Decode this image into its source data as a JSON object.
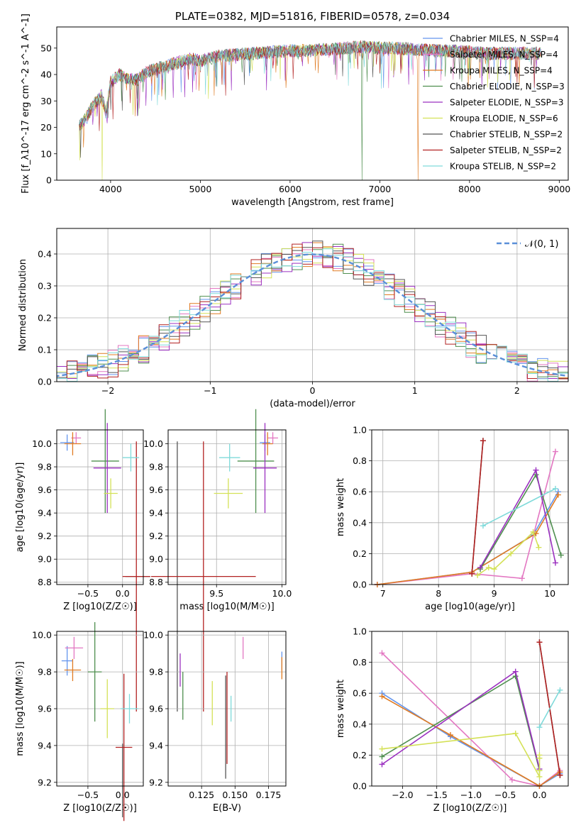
{
  "chart_data": [
    {
      "id": "spectrum",
      "type": "line",
      "title": "PLATE=0382, MJD=51816, FIBERID=0578, z=0.034",
      "xlabel": "wavelength [Angstrom, rest frame]",
      "ylabel": "Flux [f_λ10^-17 erg cm^-2 s^-1 A^-1]",
      "xlim": [
        3400,
        9100
      ],
      "ylim": [
        0,
        58
      ],
      "xticks": [
        4000,
        5000,
        6000,
        7000,
        8000,
        9000
      ],
      "yticks": [
        0,
        10,
        20,
        30,
        40,
        50
      ],
      "legend_position": "top-right",
      "grid": false,
      "series": [
        {
          "name": "Chabrier MILES, N_SSP=4",
          "color": "#6495ed"
        },
        {
          "name": "Salpeter MILES, N_SSP=4",
          "color": "#e377c2"
        },
        {
          "name": "Kroupa MILES, N_SSP=4",
          "color": "#e07b22"
        },
        {
          "name": "Chabrier ELODIE, N_SSP=3",
          "color": "#4f8f4f"
        },
        {
          "name": "Salpeter ELODIE, N_SSP=3",
          "color": "#9b30c0"
        },
        {
          "name": "Kroupa ELODIE, N_SSP=6",
          "color": "#d4e157"
        },
        {
          "name": "Chabrier STELIB, N_SSP=2",
          "color": "#555555"
        },
        {
          "name": "Salpeter STELIB, N_SSP=2",
          "color": "#b22222"
        },
        {
          "name": "Kroupa STELIB, N_SSP=2",
          "color": "#7fdada"
        }
      ],
      "continuum": {
        "x": [
          3650,
          3700,
          3800,
          3900,
          3950,
          4000,
          4100,
          4200,
          4300,
          4400,
          4500,
          4700,
          4900,
          5000,
          5200,
          5400,
          5600,
          5800,
          6000,
          6200,
          6400,
          6600,
          6800,
          7000,
          7200,
          7400,
          7600,
          7800,
          8000,
          8200,
          8400,
          8600,
          8800
        ],
        "y": [
          21,
          22,
          28,
          32,
          25,
          37,
          40,
          38,
          38,
          41,
          42,
          44,
          46,
          45,
          47,
          47.5,
          48,
          48.5,
          49,
          49,
          49.5,
          50,
          50.5,
          50,
          50,
          49.5,
          49,
          49,
          48.5,
          48,
          48,
          48,
          48
        ]
      }
    },
    {
      "id": "residuals",
      "type": "histogram",
      "xlabel": "(data-model)/error",
      "ylabel": "Normed distribution",
      "xlim": [
        -2.5,
        2.5
      ],
      "ylim": [
        0,
        0.48
      ],
      "xticks": [
        -2,
        -1,
        0,
        1,
        2
      ],
      "yticks": [
        0.0,
        0.1,
        0.2,
        0.3,
        0.4
      ],
      "grid": true,
      "legend_position": "top-right",
      "reference_curve": {
        "label": "𝒩(0, 1)",
        "color": "#5a8fd8",
        "mean": 0,
        "sigma": 1
      },
      "bin_width": 0.1
    },
    {
      "id": "age-vs-Z",
      "type": "scatter",
      "xlabel": "Z [log10(Z/Z☉)]",
      "ylabel": "age  [log10(age/yr)]",
      "xlim": [
        -0.95,
        0.3
      ],
      "ylim": [
        8.78,
        10.12
      ],
      "xticks": [
        -0.5,
        0.0
      ],
      "yticks": [
        8.8,
        9.0,
        9.2,
        9.4,
        9.6,
        9.8,
        10.0
      ],
      "grid": true,
      "points": [
        {
          "x": -0.8,
          "y": 10.01,
          "ex": 0.1,
          "ey": 0.07,
          "color": "#6495ed"
        },
        {
          "x": -0.67,
          "y": 10.05,
          "ex": 0.07,
          "ey": 0.05,
          "color": "#e377c2"
        },
        {
          "x": -0.72,
          "y": 10.0,
          "ex": 0.12,
          "ey": 0.1,
          "color": "#e07b22"
        },
        {
          "x": -0.25,
          "y": 9.85,
          "ex": 0.2,
          "ey": 0.45,
          "color": "#4f8f4f"
        },
        {
          "x": -0.22,
          "y": 9.79,
          "ex": 0.2,
          "ey": 0.39,
          "color": "#9b30c0"
        },
        {
          "x": -0.17,
          "y": 9.57,
          "ex": 0.1,
          "ey": 0.13,
          "color": "#d4e157"
        },
        {
          "x": 0.22,
          "y": 8.85,
          "ex": 0.18,
          "ey": 0.0,
          "color": "#555555"
        },
        {
          "x": 0.2,
          "y": 8.85,
          "ex": 0.2,
          "ey": 1.17,
          "color": "#b22222"
        },
        {
          "x": 0.12,
          "y": 9.88,
          "ex": 0.12,
          "ey": 0.12,
          "color": "#7fdada"
        }
      ]
    },
    {
      "id": "age-vs-mass",
      "type": "scatter",
      "xlabel": "mass [log10(M/M☉)]",
      "ylabel": "",
      "xlim": [
        9.13,
        10.03
      ],
      "ylim": [
        8.78,
        10.12
      ],
      "xticks": [
        9.5,
        10.0
      ],
      "yticks": [
        8.8,
        9.0,
        9.2,
        9.4,
        9.6,
        9.8,
        10.0
      ],
      "grid": true,
      "points": [
        {
          "x": 9.87,
          "y": 10.01,
          "ex": 0.04,
          "ey": 0.07,
          "color": "#6495ed"
        },
        {
          "x": 9.93,
          "y": 10.05,
          "ex": 0.04,
          "ey": 0.05,
          "color": "#e377c2"
        },
        {
          "x": 9.89,
          "y": 10.0,
          "ex": 0.04,
          "ey": 0.1,
          "color": "#e07b22"
        },
        {
          "x": 9.8,
          "y": 9.85,
          "ex": 0.14,
          "ey": 0.45,
          "color": "#4f8f4f"
        },
        {
          "x": 9.87,
          "y": 9.79,
          "ex": 0.09,
          "ey": 0.39,
          "color": "#9b30c0"
        },
        {
          "x": 9.59,
          "y": 9.57,
          "ex": 0.11,
          "ey": 0.13,
          "color": "#d4e157"
        },
        {
          "x": 9.2,
          "y": 8.85,
          "ex": 0.0,
          "ey": 1.17,
          "color": "#555555"
        },
        {
          "x": 9.4,
          "y": 8.85,
          "ex": 0.4,
          "ey": 1.17,
          "color": "#b22222"
        },
        {
          "x": 9.6,
          "y": 9.88,
          "ex": 0.08,
          "ey": 0.12,
          "color": "#7fdada"
        }
      ]
    },
    {
      "id": "weight-vs-age",
      "type": "line",
      "xlabel": "age  [log10(age/yr)]",
      "ylabel": "mass weight",
      "xlim": [
        6.8,
        10.33
      ],
      "ylim": [
        0,
        1.0
      ],
      "xticks": [
        7,
        8,
        9,
        10
      ],
      "yticks": [
        0.0,
        0.2,
        0.4,
        0.6,
        0.8,
        1.0
      ],
      "grid": true,
      "series": [
        {
          "color": "#6495ed",
          "x": [
            6.9,
            8.6,
            9.7,
            10.15
          ],
          "y": [
            0.0,
            0.08,
            0.32,
            0.6
          ]
        },
        {
          "color": "#e377c2",
          "x": [
            6.9,
            8.6,
            9.5,
            10.1
          ],
          "y": [
            0.0,
            0.07,
            0.04,
            0.86
          ]
        },
        {
          "color": "#e07b22",
          "x": [
            6.9,
            8.6,
            9.75,
            10.15
          ],
          "y": [
            0.0,
            0.08,
            0.33,
            0.58
          ]
        },
        {
          "color": "#4f8f4f",
          "x": [
            8.75,
            9.75,
            10.2
          ],
          "y": [
            0.1,
            0.71,
            0.19
          ]
        },
        {
          "color": "#9b30c0",
          "x": [
            8.75,
            9.75,
            10.1
          ],
          "y": [
            0.11,
            0.74,
            0.14
          ]
        },
        {
          "color": "#d4e157",
          "x": [
            8.7,
            8.9,
            9.0,
            9.3,
            9.7,
            9.8
          ],
          "y": [
            0.06,
            0.11,
            0.1,
            0.2,
            0.34,
            0.24
          ]
        },
        {
          "color": "#555555",
          "x": [
            8.6,
            8.8
          ],
          "y": [
            0.07,
            0.93
          ]
        },
        {
          "color": "#b22222",
          "x": [
            8.6,
            8.8
          ],
          "y": [
            0.07,
            0.93
          ]
        },
        {
          "color": "#7fdada",
          "x": [
            8.8,
            10.1
          ],
          "y": [
            0.38,
            0.62
          ]
        }
      ]
    },
    {
      "id": "mass-vs-Z",
      "type": "scatter",
      "xlabel": "Z [log10(Z/Z☉)]",
      "ylabel": "mass [log10(M/M☉)]",
      "xlim": [
        -0.95,
        0.3
      ],
      "ylim": [
        9.18,
        10.02
      ],
      "xticks": [
        -0.5,
        0.0
      ],
      "yticks": [
        9.2,
        9.4,
        9.6,
        9.8,
        10.0
      ],
      "grid": true,
      "points": [
        {
          "x": -0.8,
          "y": 9.86,
          "ex": 0.08,
          "ey": 0.08,
          "color": "#6495ed"
        },
        {
          "x": -0.7,
          "y": 9.93,
          "ex": 0.13,
          "ey": 0.06,
          "color": "#e377c2"
        },
        {
          "x": -0.72,
          "y": 9.81,
          "ex": 0.12,
          "ey": 0.06,
          "color": "#e07b22"
        },
        {
          "x": -0.4,
          "y": 9.8,
          "ex": 0.1,
          "ey": 0.27,
          "color": "#4f8f4f"
        },
        {
          "x": -0.32,
          "y": 9.89,
          "ex": 0.0,
          "ey": 0.0,
          "color": "#9b30c0"
        },
        {
          "x": -0.22,
          "y": 9.6,
          "ex": 0.1,
          "ey": 0.16,
          "color": "#d4e157"
        },
        {
          "x": 0.0,
          "y": 9.21,
          "ex": 0.0,
          "ey": 0.2,
          "color": "#555555"
        },
        {
          "x": 0.02,
          "y": 9.39,
          "ex": 0.12,
          "ey": 0.4,
          "color": "#b22222"
        },
        {
          "x": 0.1,
          "y": 9.6,
          "ex": 0.13,
          "ey": 0.08,
          "color": "#7fdada"
        }
      ]
    },
    {
      "id": "mass-vs-EBV",
      "type": "scatter",
      "xlabel": "E(B-V)",
      "ylabel": "",
      "xlim": [
        0.1,
        0.188
      ],
      "ylim": [
        9.18,
        10.02
      ],
      "xticks": [
        0.125,
        0.15,
        0.175
      ],
      "yticks": [
        9.2,
        9.4,
        9.6,
        9.8,
        10.0
      ],
      "grid": true,
      "points": [
        {
          "x": 0.185,
          "y": 9.86,
          "ex": 0.0,
          "ey": 0.05,
          "color": "#6495ed"
        },
        {
          "x": 0.156,
          "y": 9.93,
          "ex": 0.0,
          "ey": 0.06,
          "color": "#e377c2"
        },
        {
          "x": 0.185,
          "y": 9.82,
          "ex": 0.0,
          "ey": 0.06,
          "color": "#e07b22"
        },
        {
          "x": 0.111,
          "y": 9.67,
          "ex": 0.0,
          "ey": 0.13,
          "color": "#4f8f4f"
        },
        {
          "x": 0.109,
          "y": 9.81,
          "ex": 0.0,
          "ey": 0.09,
          "color": "#9b30c0"
        },
        {
          "x": 0.133,
          "y": 9.63,
          "ex": 0.0,
          "ey": 0.12,
          "color": "#d4e157"
        },
        {
          "x": 0.143,
          "y": 9.5,
          "ex": 0.0,
          "ey": 0.28,
          "color": "#555555"
        },
        {
          "x": 0.144,
          "y": 9.55,
          "ex": 0.0,
          "ey": 0.25,
          "color": "#b22222"
        },
        {
          "x": 0.147,
          "y": 9.6,
          "ex": 0.0,
          "ey": 0.07,
          "color": "#7fdada"
        }
      ]
    },
    {
      "id": "weight-vs-Z",
      "type": "line",
      "xlabel": "Z [log10(Z/Z☉)]",
      "ylabel": "mass weight",
      "xlim": [
        -2.45,
        0.42
      ],
      "ylim": [
        0,
        1.0
      ],
      "xticks": [
        -2.0,
        -1.5,
        -1.0,
        -0.5,
        0.0
      ],
      "yticks": [
        0.0,
        0.2,
        0.4,
        0.6,
        0.8,
        1.0
      ],
      "grid": true,
      "series": [
        {
          "color": "#6495ed",
          "x": [
            -2.3,
            -1.3,
            0.0,
            0.3
          ],
          "y": [
            0.6,
            0.32,
            0.0,
            0.08
          ]
        },
        {
          "color": "#e377c2",
          "x": [
            -2.3,
            -0.4,
            0.0,
            0.3
          ],
          "y": [
            0.86,
            0.04,
            0.0,
            0.1
          ]
        },
        {
          "color": "#e07b22",
          "x": [
            -2.3,
            -1.3,
            0.0,
            0.3
          ],
          "y": [
            0.58,
            0.33,
            0.0,
            0.09
          ]
        },
        {
          "color": "#4f8f4f",
          "x": [
            -2.3,
            -0.35,
            0.0
          ],
          "y": [
            0.19,
            0.71,
            0.1
          ]
        },
        {
          "color": "#9b30c0",
          "x": [
            -2.3,
            -0.35,
            0.0
          ],
          "y": [
            0.14,
            0.74,
            0.11
          ]
        },
        {
          "color": "#d4e157",
          "x": [
            -2.3,
            -0.35,
            0.0,
            0.0,
            0.0,
            0.0
          ],
          "y": [
            0.24,
            0.34,
            0.06,
            0.1,
            0.18,
            0.2
          ]
        },
        {
          "color": "#555555",
          "x": [
            0.0,
            0.3
          ],
          "y": [
            0.93,
            0.07
          ]
        },
        {
          "color": "#b22222",
          "x": [
            0.0,
            0.3
          ],
          "y": [
            0.93,
            0.07
          ]
        },
        {
          "color": "#7fdada",
          "x": [
            0.0,
            0.3
          ],
          "y": [
            0.38,
            0.62
          ]
        }
      ]
    }
  ]
}
